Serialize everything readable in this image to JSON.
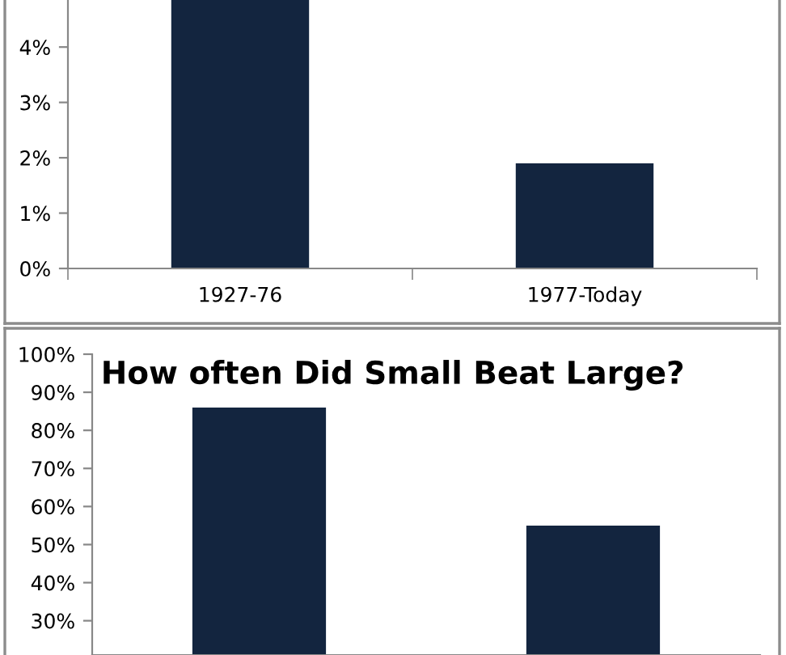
{
  "chart_data": [
    {
      "type": "bar",
      "categories": [
        "1927-76",
        "1977-Today"
      ],
      "values": [
        4.85,
        1.9
      ],
      "color": "#13253f",
      "ylim": [
        0,
        4.85
      ],
      "yticks": [
        {
          "value": 0,
          "label": "0%"
        },
        {
          "value": 1,
          "label": "1%"
        },
        {
          "value": 2,
          "label": "2%"
        },
        {
          "value": 3,
          "label": "3%"
        },
        {
          "value": 4,
          "label": "4%"
        }
      ],
      "grid": false
    },
    {
      "type": "bar",
      "title": "How often Did Small Beat Large?",
      "categories": [
        null,
        null
      ],
      "values": [
        86,
        55
      ],
      "color": "#13253f",
      "ylim": [
        21,
        100
      ],
      "yticks": [
        {
          "value": 30,
          "label": "30%"
        },
        {
          "value": 40,
          "label": "40%"
        },
        {
          "value": 50,
          "label": "50%"
        },
        {
          "value": 60,
          "label": "60%"
        },
        {
          "value": 70,
          "label": "70%"
        },
        {
          "value": 80,
          "label": "80%"
        },
        {
          "value": 90,
          "label": "90%"
        },
        {
          "value": 100,
          "label": "100%"
        }
      ],
      "grid": false
    }
  ]
}
